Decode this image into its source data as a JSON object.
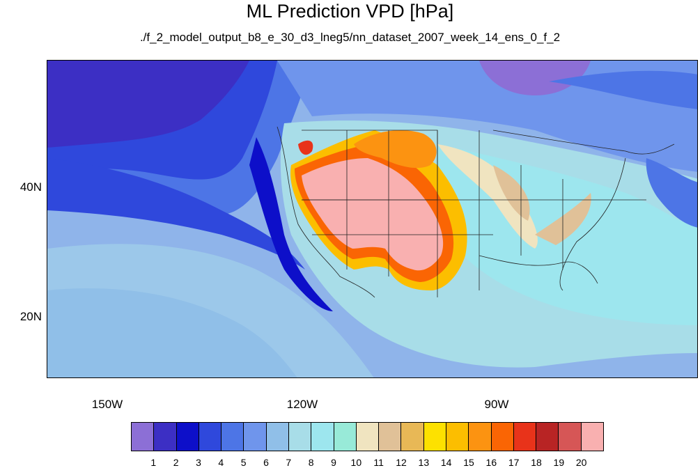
{
  "title": "ML Prediction VPD [hPa]",
  "subtitle": "./f_2_model_output_b8_e_30_d3_lneg5/nn_dataset_2007_week_14_ens_0_f_2",
  "map": {
    "lat_labels": [
      "40N",
      "20N"
    ],
    "lon_labels": [
      "150W",
      "120W",
      "90W"
    ]
  },
  "colorbar": {
    "levels": [
      "1",
      "2",
      "3",
      "4",
      "5",
      "6",
      "7",
      "8",
      "9",
      "10",
      "11",
      "12",
      "13",
      "14",
      "15",
      "16",
      "17",
      "18",
      "19",
      "20"
    ],
    "colors": [
      "#8c6fd6",
      "#3c2fc4",
      "#0d0fc9",
      "#2f48dc",
      "#4d75e6",
      "#6f95ec",
      "#90bfe8",
      "#a8dde8",
      "#9de6ee",
      "#98ead8",
      "#f0e4c0",
      "#e0c198",
      "#e8b856",
      "#fde100",
      "#fcbe00",
      "#fc9311",
      "#fa6504",
      "#e8331a",
      "#b82424",
      "#d65656",
      "#f9b0b0"
    ]
  }
}
